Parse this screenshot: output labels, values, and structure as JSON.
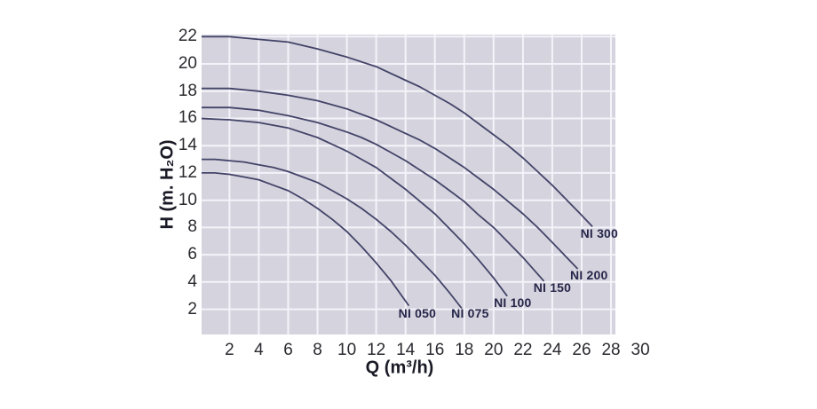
{
  "chart_data": {
    "type": "line",
    "title": "",
    "xlabel": "Q (m³/h)",
    "ylabel": "H (m. H₂O)",
    "x_ticks": [
      2,
      4,
      6,
      8,
      10,
      12,
      14,
      16,
      18,
      20,
      22,
      24,
      26,
      28,
      30
    ],
    "y_ticks": [
      2,
      4,
      6,
      8,
      10,
      12,
      14,
      16,
      18,
      20,
      22
    ],
    "xlim": [
      0.1,
      28.3
    ],
    "ylim": [
      0.15,
      22.15
    ],
    "grid": true,
    "legend": "curve-end-labels",
    "colors": {
      "page_bg": "#ffffff",
      "plot_bg": "#d5d4de",
      "grid": "#f4f3f9",
      "curve": "#424368",
      "tick_text": "#2a2a30",
      "axis_title_text": "#1a1a26",
      "curve_label_text": "#26264a"
    },
    "series": [
      {
        "name": "NI 050",
        "label_at": {
          "q": 14.8,
          "h": 1.7
        },
        "points": [
          [
            0,
            12
          ],
          [
            1,
            12
          ],
          [
            2,
            11.9
          ],
          [
            3,
            11.7
          ],
          [
            4,
            11.5
          ],
          [
            5,
            11.1
          ],
          [
            6,
            10.7
          ],
          [
            7,
            10.1
          ],
          [
            8,
            9.4
          ],
          [
            9,
            8.6
          ],
          [
            10,
            7.7
          ],
          [
            11,
            6.6
          ],
          [
            12,
            5.4
          ],
          [
            13,
            4.1
          ],
          [
            14.2,
            2.3
          ]
        ]
      },
      {
        "name": "NI 075",
        "label_at": {
          "q": 18.4,
          "h": 1.7
        },
        "points": [
          [
            0,
            13
          ],
          [
            1,
            13
          ],
          [
            2,
            12.9
          ],
          [
            3,
            12.8
          ],
          [
            4,
            12.6
          ],
          [
            5,
            12.4
          ],
          [
            6,
            12.1
          ],
          [
            7,
            11.7
          ],
          [
            8,
            11.3
          ],
          [
            9,
            10.7
          ],
          [
            10,
            10.1
          ],
          [
            11,
            9.4
          ],
          [
            12,
            8.6
          ],
          [
            13,
            7.7
          ],
          [
            14,
            6.7
          ],
          [
            15,
            5.6
          ],
          [
            16,
            4.5
          ],
          [
            17,
            3.2
          ],
          [
            17.8,
            2.1
          ]
        ]
      },
      {
        "name": "NI 100",
        "label_at": {
          "q": 21.3,
          "h": 2.5
        },
        "points": [
          [
            0,
            16
          ],
          [
            2,
            15.9
          ],
          [
            4,
            15.7
          ],
          [
            6,
            15.3
          ],
          [
            8,
            14.6
          ],
          [
            9,
            14.1
          ],
          [
            10,
            13.6
          ],
          [
            11,
            13
          ],
          [
            12,
            12.4
          ],
          [
            13,
            11.6
          ],
          [
            14,
            10.8
          ],
          [
            15,
            9.9
          ],
          [
            16,
            9
          ],
          [
            17,
            7.9
          ],
          [
            18,
            6.8
          ],
          [
            19,
            5.6
          ],
          [
            20,
            4.3
          ],
          [
            20.9,
            3
          ]
        ]
      },
      {
        "name": "NI 150",
        "label_at": {
          "q": 24,
          "h": 3.6
        },
        "points": [
          [
            0,
            16.8
          ],
          [
            2,
            16.8
          ],
          [
            4,
            16.6
          ],
          [
            6,
            16.2
          ],
          [
            8,
            15.7
          ],
          [
            10,
            15
          ],
          [
            11,
            14.6
          ],
          [
            12,
            14.1
          ],
          [
            13,
            13.5
          ],
          [
            14,
            12.9
          ],
          [
            15,
            12.2
          ],
          [
            16,
            11.5
          ],
          [
            17,
            10.7
          ],
          [
            18,
            9.9
          ],
          [
            19,
            8.9
          ],
          [
            20,
            8
          ],
          [
            21,
            6.9
          ],
          [
            22,
            5.8
          ],
          [
            23.4,
            4.1
          ]
        ]
      },
      {
        "name": "NI 200",
        "label_at": {
          "q": 26.5,
          "h": 4.5
        },
        "points": [
          [
            0,
            18.2
          ],
          [
            2,
            18.2
          ],
          [
            4,
            18
          ],
          [
            6,
            17.7
          ],
          [
            8,
            17.3
          ],
          [
            10,
            16.7
          ],
          [
            12,
            15.9
          ],
          [
            13,
            15.4
          ],
          [
            14,
            14.9
          ],
          [
            15,
            14.4
          ],
          [
            16,
            13.8
          ],
          [
            17,
            13.1
          ],
          [
            18,
            12.4
          ],
          [
            19,
            11.6
          ],
          [
            20,
            10.8
          ],
          [
            21,
            9.9
          ],
          [
            22,
            9
          ],
          [
            23,
            8
          ],
          [
            24,
            6.9
          ],
          [
            25.7,
            5
          ]
        ]
      },
      {
        "name": "NI 300",
        "label_at": {
          "q": 27.2,
          "h": 7.6
        },
        "points": [
          [
            0,
            22
          ],
          [
            2,
            22
          ],
          [
            4,
            21.8
          ],
          [
            6,
            21.6
          ],
          [
            8,
            21.1
          ],
          [
            10,
            20.5
          ],
          [
            12,
            19.8
          ],
          [
            14,
            18.8
          ],
          [
            15,
            18.3
          ],
          [
            16,
            17.7
          ],
          [
            17,
            17.1
          ],
          [
            18,
            16.4
          ],
          [
            19,
            15.6
          ],
          [
            20,
            14.8
          ],
          [
            21,
            14
          ],
          [
            22,
            13.1
          ],
          [
            23,
            12.1
          ],
          [
            24,
            11.1
          ],
          [
            25,
            10
          ],
          [
            26,
            8.9
          ],
          [
            26.7,
            8.1
          ]
        ]
      }
    ]
  }
}
